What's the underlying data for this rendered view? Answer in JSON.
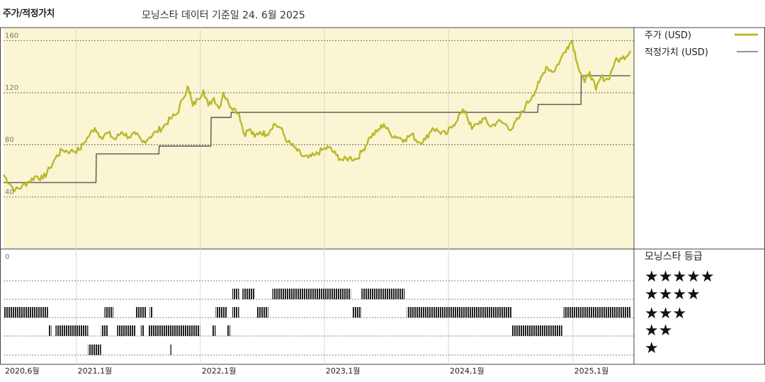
{
  "header": {
    "title": "주가/적정가치",
    "subtitle": "모닝스타 데이터 기준일 24. 6월 2025"
  },
  "legend": {
    "price_label": "주가 (USD)",
    "fair_value_label": "적정가치 (USD)",
    "rating_title": "모닝스타 등급"
  },
  "colors": {
    "price_line": "#b8b82a",
    "fair_value_line": "#555555",
    "plot_background": "#faf5d2",
    "rating_bar": "#222222"
  },
  "chart_data": [
    {
      "type": "line",
      "x_axis": {
        "start": "2020-06",
        "end": "2025-06",
        "tick_labels": [
          "2020,6월",
          "2021,1월",
          "2022,1월",
          "2023,1월",
          "2024,1월",
          "2025,1월"
        ],
        "tick_dates": [
          "2020-06",
          "2021-01",
          "2022-01",
          "2023-01",
          "2024-01",
          "2025-01"
        ]
      },
      "y_axis": {
        "ylim": [
          0,
          170
        ],
        "tick_values": [
          40,
          80,
          120,
          160
        ],
        "tick_labels": [
          "40",
          "80",
          "120",
          "160"
        ]
      },
      "grid": true,
      "legend_position": "right",
      "series": [
        {
          "name": "주가 (USD)",
          "points": [
            [
              "2020-06-01",
              57
            ],
            [
              "2020-06-20",
              50
            ],
            [
              "2020-07-05",
              45
            ],
            [
              "2020-07-25",
              48
            ],
            [
              "2020-08-15",
              52
            ],
            [
              "2020-09-05",
              56
            ],
            [
              "2020-09-25",
              54
            ],
            [
              "2020-10-15",
              62
            ],
            [
              "2020-11-01",
              70
            ],
            [
              "2020-11-20",
              76
            ],
            [
              "2020-12-15",
              75
            ],
            [
              "2021-01-10",
              76
            ],
            [
              "2021-01-25",
              82
            ],
            [
              "2021-02-10",
              88
            ],
            [
              "2021-02-25",
              93
            ],
            [
              "2021-03-15",
              86
            ],
            [
              "2021-04-05",
              89
            ],
            [
              "2021-04-25",
              84
            ],
            [
              "2021-05-15",
              90
            ],
            [
              "2021-06-05",
              86
            ],
            [
              "2021-06-25",
              88
            ],
            [
              "2021-07-15",
              82
            ],
            [
              "2021-08-05",
              86
            ],
            [
              "2021-08-25",
              90
            ],
            [
              "2021-09-15",
              94
            ],
            [
              "2021-10-05",
              100
            ],
            [
              "2021-10-25",
              104
            ],
            [
              "2021-11-10",
              115
            ],
            [
              "2021-11-25",
              125
            ],
            [
              "2021-12-10",
              110
            ],
            [
              "2021-12-25",
              115
            ],
            [
              "2022-01-10",
              122
            ],
            [
              "2022-01-25",
              110
            ],
            [
              "2022-02-10",
              116
            ],
            [
              "2022-02-25",
              108
            ],
            [
              "2022-03-10",
              120
            ],
            [
              "2022-03-25",
              112
            ],
            [
              "2022-04-10",
              108
            ],
            [
              "2022-04-25",
              104
            ],
            [
              "2022-05-10",
              88
            ],
            [
              "2022-05-25",
              92
            ],
            [
              "2022-06-10",
              86
            ],
            [
              "2022-06-25",
              90
            ],
            [
              "2022-07-15",
              88
            ],
            [
              "2022-08-05",
              96
            ],
            [
              "2022-08-25",
              93
            ],
            [
              "2022-09-15",
              82
            ],
            [
              "2022-10-05",
              78
            ],
            [
              "2022-10-25",
              72
            ],
            [
              "2022-11-15",
              70
            ],
            [
              "2022-12-05",
              72
            ],
            [
              "2022-12-25",
              76
            ],
            [
              "2023-01-15",
              78
            ],
            [
              "2023-02-05",
              72
            ],
            [
              "2023-02-25",
              68
            ],
            [
              "2023-03-15",
              70
            ],
            [
              "2023-04-05",
              69
            ],
            [
              "2023-04-25",
              76
            ],
            [
              "2023-05-15",
              86
            ],
            [
              "2023-06-05",
              90
            ],
            [
              "2023-06-25",
              96
            ],
            [
              "2023-07-15",
              88
            ],
            [
              "2023-08-05",
              86
            ],
            [
              "2023-08-25",
              84
            ],
            [
              "2023-09-15",
              88
            ],
            [
              "2023-10-05",
              82
            ],
            [
              "2023-10-25",
              84
            ],
            [
              "2023-11-15",
              93
            ],
            [
              "2023-12-05",
              90
            ],
            [
              "2023-12-25",
              88
            ],
            [
              "2024-01-15",
              95
            ],
            [
              "2024-02-05",
              104
            ],
            [
              "2024-02-20",
              106
            ],
            [
              "2024-03-10",
              92
            ],
            [
              "2024-03-25",
              96
            ],
            [
              "2024-04-15",
              100
            ],
            [
              "2024-05-05",
              94
            ],
            [
              "2024-05-25",
              98
            ],
            [
              "2024-06-15",
              96
            ],
            [
              "2024-07-05",
              92
            ],
            [
              "2024-07-25",
              100
            ],
            [
              "2024-08-15",
              110
            ],
            [
              "2024-09-05",
              118
            ],
            [
              "2024-09-25",
              128
            ],
            [
              "2024-10-15",
              140
            ],
            [
              "2024-11-05",
              136
            ],
            [
              "2024-11-25",
              145
            ],
            [
              "2024-12-15",
              155
            ],
            [
              "2024-12-30",
              160
            ],
            [
              "2025-01-15",
              142
            ],
            [
              "2025-02-05",
              128
            ],
            [
              "2025-02-20",
              136
            ],
            [
              "2025-03-10",
              122
            ],
            [
              "2025-03-25",
              132
            ],
            [
              "2025-04-15",
              130
            ],
            [
              "2025-05-05",
              144
            ],
            [
              "2025-05-25",
              146
            ],
            [
              "2025-06-20",
              152
            ]
          ]
        },
        {
          "name": "적정가치 (USD)",
          "step": true,
          "points": [
            [
              "2020-06-01",
              51
            ],
            [
              "2021-02-28",
              51
            ],
            [
              "2021-03-01",
              73
            ],
            [
              "2021-09-01",
              73
            ],
            [
              "2021-09-02",
              79
            ],
            [
              "2022-02-01",
              79
            ],
            [
              "2022-02-02",
              101
            ],
            [
              "2022-04-01",
              101
            ],
            [
              "2022-04-02",
              105
            ],
            [
              "2024-09-20",
              105
            ],
            [
              "2024-09-21",
              111
            ],
            [
              "2025-01-25",
              111
            ],
            [
              "2025-01-26",
              133
            ],
            [
              "2025-06-20",
              133
            ]
          ]
        }
      ]
    },
    {
      "type": "heatmap",
      "title": "모닝스타 등급",
      "rows": [
        "★★★★★",
        "★★★★",
        "★★★",
        "★★",
        "★"
      ],
      "row_values": [
        5,
        4,
        3,
        2,
        1
      ],
      "panel_tick_label": "0",
      "rating_periods": [
        {
          "rating": 3,
          "from": "2020-06-01",
          "to": "2020-10-10"
        },
        {
          "rating": 2,
          "from": "2020-10-12",
          "to": "2020-10-20"
        },
        {
          "rating": 2,
          "from": "2020-11-01",
          "to": "2021-02-05"
        },
        {
          "rating": 1,
          "from": "2021-02-05",
          "to": "2021-03-15"
        },
        {
          "rating": 2,
          "from": "2021-03-15",
          "to": "2021-04-05"
        },
        {
          "rating": 3,
          "from": "2021-03-25",
          "to": "2021-04-20"
        },
        {
          "rating": 2,
          "from": "2021-05-01",
          "to": "2021-06-25"
        },
        {
          "rating": 3,
          "from": "2021-06-25",
          "to": "2021-07-25"
        },
        {
          "rating": 2,
          "from": "2021-07-10",
          "to": "2021-07-20"
        },
        {
          "rating": 3,
          "from": "2021-08-05",
          "to": "2021-08-15"
        },
        {
          "rating": 2,
          "from": "2021-08-01",
          "to": "2021-12-31"
        },
        {
          "rating": 1,
          "from": "2021-10-05",
          "to": "2021-10-10"
        },
        {
          "rating": 2,
          "from": "2022-02-05",
          "to": "2022-02-15"
        },
        {
          "rating": 3,
          "from": "2022-02-15",
          "to": "2022-03-20"
        },
        {
          "rating": 2,
          "from": "2022-03-20",
          "to": "2022-03-30"
        },
        {
          "rating": 4,
          "from": "2022-04-05",
          "to": "2022-04-25"
        },
        {
          "rating": 3,
          "from": "2022-04-05",
          "to": "2022-04-25"
        },
        {
          "rating": 4,
          "from": "2022-05-05",
          "to": "2022-06-10"
        },
        {
          "rating": 3,
          "from": "2022-06-15",
          "to": "2022-07-20"
        },
        {
          "rating": 4,
          "from": "2022-08-01",
          "to": "2023-03-20"
        },
        {
          "rating": 3,
          "from": "2023-03-25",
          "to": "2023-04-20"
        },
        {
          "rating": 4,
          "from": "2023-04-20",
          "to": "2023-08-25"
        },
        {
          "rating": 3,
          "from": "2023-09-01",
          "to": "2024-07-05"
        },
        {
          "rating": 2,
          "from": "2024-07-05",
          "to": "2024-12-01"
        },
        {
          "rating": 3,
          "from": "2024-12-05",
          "to": "2025-06-20"
        }
      ]
    }
  ]
}
